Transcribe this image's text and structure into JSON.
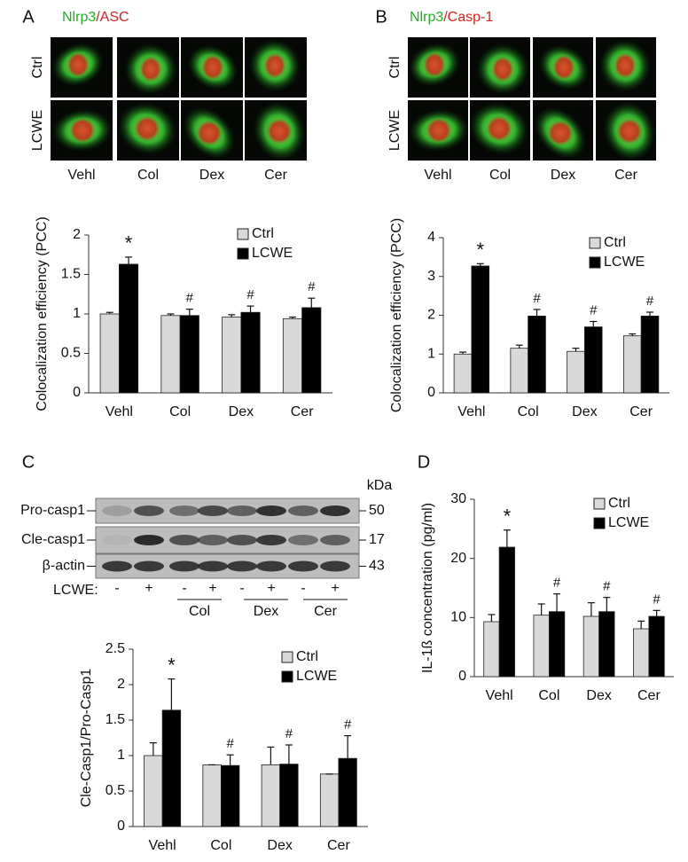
{
  "panel_labels": [
    "A",
    "B",
    "C",
    "D"
  ],
  "images": [
    {
      "title_parts": [
        "Nlrp3",
        "/ASC"
      ],
      "rows": [
        "Ctrl",
        "LCWE"
      ],
      "columns": [
        "Vehl",
        "Col",
        "Dex",
        "Cer"
      ]
    },
    {
      "title_parts": [
        "Nlrp3",
        "/Casp-1"
      ],
      "rows": [
        "Ctrl",
        "LCWE"
      ],
      "columns": [
        "Vehl",
        "Col",
        "Dex",
        "Cer"
      ]
    }
  ],
  "blot": {
    "unit": "kDa",
    "rows": [
      {
        "name": "Pro-casp1",
        "kda": 50
      },
      {
        "name": "Cle-casp1",
        "kda": 17
      },
      {
        "name": "β-actin",
        "kda": 43
      }
    ],
    "treatment_label": "LCWE:",
    "signs": [
      "-",
      "+",
      "-",
      "+",
      "-",
      "+",
      "-",
      "+"
    ],
    "groups": [
      "Col",
      "Dex",
      "Cer"
    ]
  },
  "chart_data": [
    {
      "type": "bar",
      "ylabel": "Colocalization efficiency (PCC)",
      "categories": [
        "Vehl",
        "Col",
        "Dex",
        "Cer"
      ],
      "series": [
        {
          "name": "Ctrl",
          "color": "#d9d9d9",
          "values": [
            1.0,
            0.98,
            0.96,
            0.94
          ],
          "errors": [
            0.02,
            0.02,
            0.03,
            0.02
          ]
        },
        {
          "name": "LCWE",
          "color": "#000000",
          "values": [
            1.63,
            0.98,
            1.02,
            1.08
          ],
          "errors": [
            0.09,
            0.08,
            0.08,
            0.12
          ],
          "annotations": [
            "*",
            "#",
            "#",
            "#"
          ]
        }
      ],
      "ylim": [
        0,
        2
      ],
      "yticks": [
        0,
        0.5,
        1,
        1.5,
        2
      ],
      "legend": "upper right"
    },
    {
      "type": "bar",
      "ylabel": "Colocalization efficiency (PCC)",
      "categories": [
        "Vehl",
        "Col",
        "Dex",
        "Cer"
      ],
      "series": [
        {
          "name": "Ctrl",
          "color": "#d9d9d9",
          "values": [
            1.0,
            1.15,
            1.07,
            1.47
          ],
          "errors": [
            0.05,
            0.08,
            0.08,
            0.05
          ]
        },
        {
          "name": "LCWE",
          "color": "#000000",
          "values": [
            3.27,
            1.98,
            1.7,
            1.98
          ],
          "errors": [
            0.06,
            0.17,
            0.14,
            0.1
          ],
          "annotations": [
            "*",
            "#",
            "#",
            "#"
          ]
        }
      ],
      "ylim": [
        0,
        4
      ],
      "yticks": [
        0,
        1,
        2,
        3,
        4
      ],
      "legend": "upper right"
    },
    {
      "type": "bar",
      "ylabel": "Cle-Casp1/Pro-Casp1",
      "categories": [
        "Vehl",
        "Col",
        "Dex",
        "Cer"
      ],
      "series": [
        {
          "name": "Ctrl",
          "color": "#d9d9d9",
          "values": [
            1.0,
            0.87,
            0.87,
            0.74
          ],
          "errors": [
            0.18,
            0,
            0.25,
            0
          ]
        },
        {
          "name": "LCWE",
          "color": "#000000",
          "values": [
            1.64,
            0.86,
            0.88,
            0.96
          ],
          "errors": [
            0.44,
            0.15,
            0.27,
            0.32
          ],
          "annotations": [
            "*",
            "#",
            "#",
            "#"
          ]
        }
      ],
      "ylim": [
        0,
        2.5
      ],
      "yticks": [
        0,
        0.5,
        1,
        1.5,
        2,
        2.5
      ],
      "legend": "upper right"
    },
    {
      "type": "bar",
      "ylabel": "IL-1ß concentration (pg/ml)",
      "categories": [
        "Vehl",
        "Col",
        "Dex",
        "Cer"
      ],
      "series": [
        {
          "name": "Ctrl",
          "color": "#d9d9d9",
          "values": [
            9.3,
            10.4,
            10.2,
            8.1
          ],
          "errors": [
            1.2,
            1.9,
            2.3,
            1.3
          ]
        },
        {
          "name": "LCWE",
          "color": "#000000",
          "values": [
            21.9,
            11.0,
            11.0,
            10.2
          ],
          "errors": [
            2.9,
            3.0,
            2.4,
            1.0
          ],
          "annotations": [
            "*",
            "#",
            "#",
            "#"
          ]
        }
      ],
      "ylim": [
        0,
        30
      ],
      "yticks": [
        0,
        10,
        20,
        30
      ],
      "legend": "upper right"
    }
  ]
}
